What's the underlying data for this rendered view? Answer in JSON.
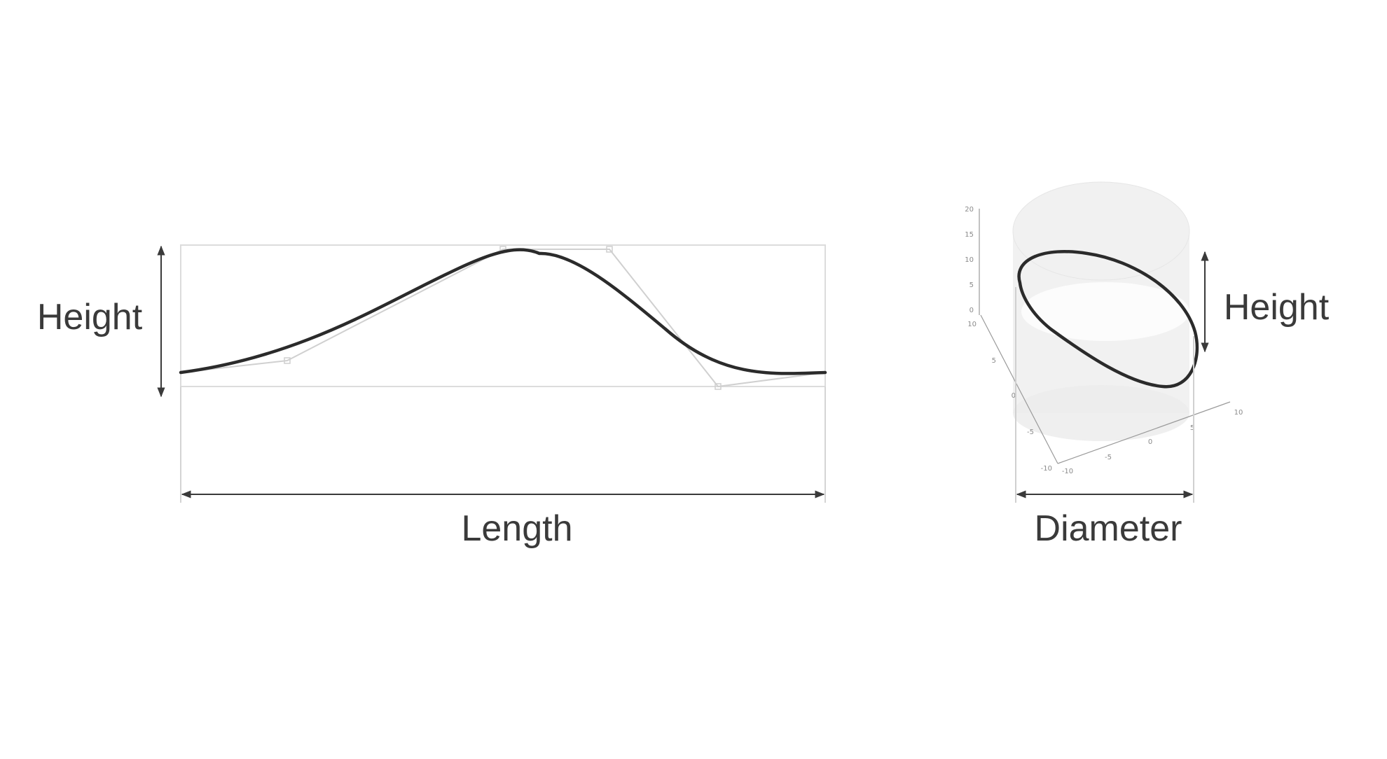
{
  "flat_view": {
    "height_label": "Height",
    "length_label": "Length"
  },
  "cylinder_view": {
    "height_label": "Height",
    "diameter_label": "Diameter",
    "z_ticks": [
      "20",
      "15",
      "10",
      "5",
      "0"
    ],
    "y_ticks": [
      "10",
      "5",
      "0",
      "-5",
      "-10"
    ],
    "x_ticks": [
      "-10",
      "-5",
      "0",
      "5",
      "10"
    ]
  },
  "colors": {
    "curve": "#2b2b2b",
    "guide": "#cfcfcf",
    "arrow": "#3a3a3a",
    "cylinder_fill": "#ededed"
  }
}
